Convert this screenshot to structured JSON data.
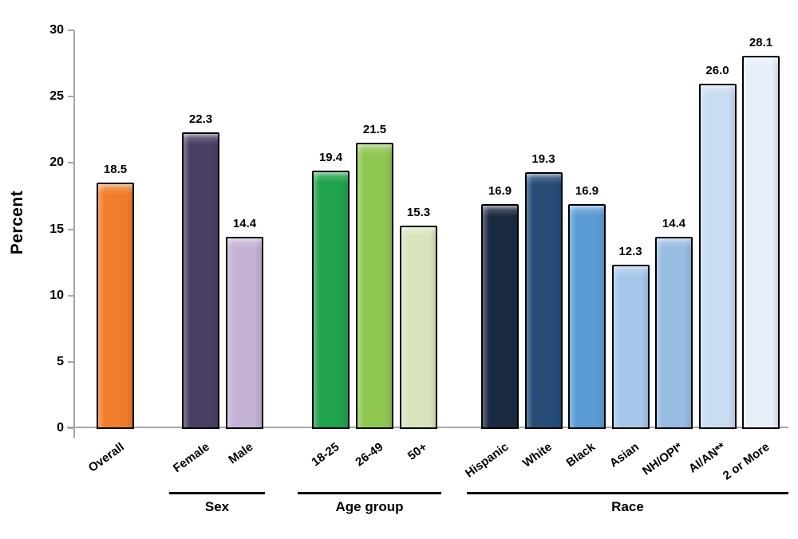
{
  "chart_data": {
    "type": "bar",
    "title": "",
    "xlabel": "",
    "ylabel": "Percent",
    "ylim": [
      0,
      30
    ],
    "yticks": [
      "0",
      "5",
      "10",
      "15",
      "20",
      "25",
      "30"
    ],
    "grid": false,
    "legend": "none",
    "value_labels_shown": true,
    "axis_color": "#A6A6A6",
    "bar_border_color": "#000000",
    "groups": [
      {
        "label": "",
        "bars": [
          {
            "category": "Overall",
            "value": 18.5,
            "display": "18.5",
            "color": "#EF7D2B"
          }
        ]
      },
      {
        "label": "Sex",
        "bars": [
          {
            "category": "Female",
            "value": 22.3,
            "display": "22.3",
            "color": "#4B3E63"
          },
          {
            "category": "Male",
            "value": 14.4,
            "display": "14.4",
            "color": "#C3B2D4"
          }
        ]
      },
      {
        "label": "Age group",
        "bars": [
          {
            "category": "18-25",
            "value": 19.4,
            "display": "19.4",
            "color": "#21A24D"
          },
          {
            "category": "26-49",
            "value": 21.5,
            "display": "21.5",
            "color": "#90C652"
          },
          {
            "category": "50+",
            "value": 15.3,
            "display": "15.3",
            "color": "#D8E4BD"
          }
        ]
      },
      {
        "label": "Race",
        "bars": [
          {
            "category": "Hispanic",
            "value": 16.9,
            "display": "16.9",
            "color": "#1B2B42"
          },
          {
            "category": "White",
            "value": 19.3,
            "display": "19.3",
            "color": "#254D78"
          },
          {
            "category": "Black",
            "value": 16.9,
            "display": "16.9",
            "color": "#5B9BD5"
          },
          {
            "category": "Asian",
            "value": 12.3,
            "display": "12.3",
            "color": "#A4C7EA"
          },
          {
            "category": "NH/OPI*",
            "value": 14.4,
            "display": "14.4",
            "color": "#98BCE2"
          },
          {
            "category": "AI/AN**",
            "value": 26.0,
            "display": "26.0",
            "color": "#C9DCF2"
          },
          {
            "category": "2 or More",
            "value": 28.1,
            "display": "28.1",
            "color": "#E7EFF9"
          }
        ]
      }
    ]
  }
}
